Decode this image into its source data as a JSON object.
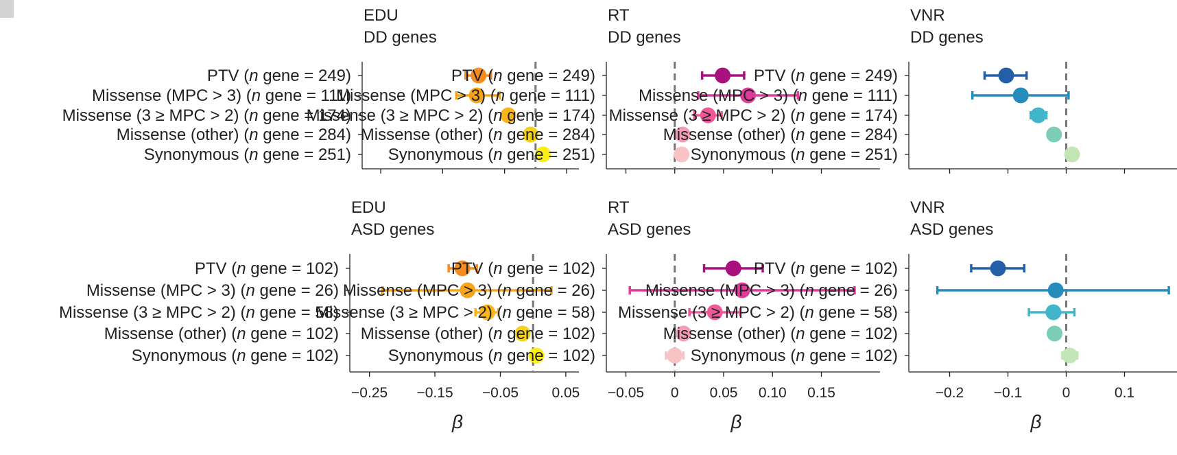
{
  "chart_data": [
    {
      "type": "forest",
      "title_line1": "EDU",
      "title_line2": "DD genes",
      "xlim": [
        -0.28,
        0.07
      ],
      "show_ticklabels": false,
      "xticks": [
        -0.25,
        -0.15,
        -0.05,
        0.05
      ],
      "ref_line": 0,
      "categories": [
        {
          "pre": "PTV (",
          "n": "n",
          "post": " gene = 249)"
        },
        {
          "pre": "Missense (MPC > 3) (",
          "n": "n",
          "post": " gene = 111)"
        },
        {
          "pre": "Missense (3 ≥ MPC > 2) (",
          "n": "n",
          "post": " gene = 174)"
        },
        {
          "pre": "Missense (other) (",
          "n": "n",
          "post": " gene = 284)"
        },
        {
          "pre": "Synonymous (",
          "n": "n",
          "post": " gene = 251)"
        }
      ],
      "beta": [
        -0.092,
        -0.095,
        -0.044,
        -0.008,
        0.012
      ],
      "ci_low": [
        -0.113,
        -0.128,
        -0.053,
        -0.008,
        0.012
      ],
      "ci_high": [
        -0.072,
        -0.058,
        -0.035,
        -0.008,
        0.012
      ],
      "colors": [
        "#f68b1f",
        "#f7a41d",
        "#f9b51a",
        "#f3d11c",
        "#fbee17"
      ]
    },
    {
      "type": "forest",
      "title_line1": "RT",
      "title_line2": "DD genes",
      "xlim": [
        -0.07,
        0.21
      ],
      "show_ticklabels": false,
      "xticks": [
        -0.05,
        0,
        0.05,
        0.1,
        0.15
      ],
      "ref_line": 0,
      "categories": [
        {
          "pre": "PTV (",
          "n": "n",
          "post": " gene = 249)"
        },
        {
          "pre": "Missense (MPC > 3) (",
          "n": "n",
          "post": " gene = 111)"
        },
        {
          "pre": "Missense (3 ≥ MPC > 2) (",
          "n": "n",
          "post": " gene = 174)"
        },
        {
          "pre": "Missense (other) (",
          "n": "n",
          "post": " gene = 284)"
        },
        {
          "pre": "Synonymous (",
          "n": "n",
          "post": " gene = 251)"
        }
      ],
      "beta": [
        0.049,
        0.075,
        0.034,
        0.008,
        0.007
      ],
      "ci_low": [
        0.028,
        0.024,
        0.02,
        0.008,
        0.007
      ],
      "ci_high": [
        0.071,
        0.126,
        0.048,
        0.008,
        0.007
      ],
      "colors": [
        "#a8117e",
        "#e03b9c",
        "#ee5a99",
        "#f49cb5",
        "#f9c3c5"
      ]
    },
    {
      "type": "forest",
      "title_line1": "VNR",
      "title_line2": "DD genes",
      "xlim": [
        -0.27,
        0.19
      ],
      "show_ticklabels": false,
      "xticks": [
        -0.2,
        -0.1,
        0,
        0.1
      ],
      "ref_line": 0,
      "categories": [
        {
          "pre": "PTV (",
          "n": "n",
          "post": " gene = 249)"
        },
        {
          "pre": "Missense (MPC > 3) (",
          "n": "n",
          "post": " gene = 111)"
        },
        {
          "pre": "Missense (3 ≥ MPC > 2) (",
          "n": "n",
          "post": " gene = 174)"
        },
        {
          "pre": "Missense (other) (",
          "n": "n",
          "post": " gene = 284)"
        },
        {
          "pre": "Synonymous (",
          "n": "n",
          "post": " gene = 251)"
        }
      ],
      "beta": [
        -0.103,
        -0.078,
        -0.048,
        -0.021,
        0.01
      ],
      "ci_low": [
        -0.14,
        -0.161,
        -0.061,
        -0.021,
        0.01
      ],
      "ci_high": [
        -0.068,
        0.004,
        -0.034,
        -0.021,
        0.01
      ],
      "colors": [
        "#2360a8",
        "#268cbc",
        "#41b5c9",
        "#7ccdb5",
        "#c3e6b7"
      ]
    },
    {
      "type": "forest",
      "title_line1": "EDU",
      "title_line2": "ASD genes",
      "xlim": [
        -0.28,
        0.07
      ],
      "show_ticklabels": true,
      "xticks": [
        -0.25,
        -0.15,
        -0.05,
        0.05
      ],
      "xtick_labels": [
        "−0.25",
        "−0.15",
        "−0.05",
        "0.05"
      ],
      "xlabel": "β",
      "ref_line": 0,
      "categories": [
        {
          "pre": "PTV (",
          "n": "n",
          "post": " gene = 102)"
        },
        {
          "pre": "Missense (MPC > 3) (",
          "n": "n",
          "post": " gene = 26)"
        },
        {
          "pre": "Missense (3 ≥ MPC > 2) (",
          "n": "n",
          "post": " gene = 58)"
        },
        {
          "pre": "Missense (other) (",
          "n": "n",
          "post": " gene = 102)"
        },
        {
          "pre": "Synonymous (",
          "n": "n",
          "post": " gene = 102)"
        }
      ],
      "beta": [
        -0.108,
        -0.1,
        -0.07,
        -0.016,
        0.005
      ],
      "ci_low": [
        -0.129,
        -0.23,
        -0.088,
        -0.016,
        0.005
      ],
      "ci_high": [
        -0.086,
        0.028,
        -0.053,
        -0.016,
        0.005
      ],
      "colors": [
        "#f68b1f",
        "#f7a41d",
        "#f9b51a",
        "#f3d11c",
        "#fbee17"
      ]
    },
    {
      "type": "forest",
      "title_line1": "RT",
      "title_line2": "ASD genes",
      "xlim": [
        -0.07,
        0.21
      ],
      "show_ticklabels": true,
      "xticks": [
        -0.05,
        0,
        0.05,
        0.1,
        0.15
      ],
      "xtick_labels": [
        "−0.05",
        "0",
        "0.05",
        "0.10",
        "0.15"
      ],
      "xlabel": "β",
      "ref_line": 0,
      "categories": [
        {
          "pre": "PTV (",
          "n": "n",
          "post": " gene = 102)"
        },
        {
          "pre": "Missense (MPC > 3) (",
          "n": "n",
          "post": " gene = 26)"
        },
        {
          "pre": "Missense (3 ≥ MPC > 2) (",
          "n": "n",
          "post": " gene = 58)"
        },
        {
          "pre": "Missense (other) (",
          "n": "n",
          "post": " gene = 102)"
        },
        {
          "pre": "Synonymous (",
          "n": "n",
          "post": " gene = 102)"
        }
      ],
      "beta": [
        0.06,
        0.069,
        0.041,
        0.009,
        0.0
      ],
      "ci_low": [
        0.03,
        -0.046,
        0.015,
        0.009,
        -0.009
      ],
      "ci_high": [
        0.09,
        0.184,
        0.067,
        0.009,
        0.009
      ],
      "colors": [
        "#a8117e",
        "#e03b9c",
        "#ee5a99",
        "#f49cb5",
        "#f9c3c5"
      ]
    },
    {
      "type": "forest",
      "title_line1": "VNR",
      "title_line2": "ASD genes",
      "xlim": [
        -0.27,
        0.19
      ],
      "show_ticklabels": true,
      "xticks": [
        -0.2,
        -0.1,
        0,
        0.1
      ],
      "xtick_labels": [
        "−0.2",
        "−0.1",
        "0",
        "0.1"
      ],
      "xlabel": "β",
      "ref_line": 0,
      "categories": [
        {
          "pre": "PTV (",
          "n": "n",
          "post": " gene = 102)"
        },
        {
          "pre": "Missense (MPC > 3) (",
          "n": "n",
          "post": " gene = 26)"
        },
        {
          "pre": "Missense (3 ≥ MPC > 2) (",
          "n": "n",
          "post": " gene = 58)"
        },
        {
          "pre": "Missense (other) (",
          "n": "n",
          "post": " gene = 102)"
        },
        {
          "pre": "Synonymous (",
          "n": "n",
          "post": " gene = 102)"
        }
      ],
      "beta": [
        -0.117,
        -0.018,
        -0.022,
        -0.02,
        0.006
      ],
      "ci_low": [
        -0.163,
        -0.221,
        -0.064,
        -0.02,
        -0.007
      ],
      "ci_high": [
        -0.072,
        0.176,
        0.014,
        -0.02,
        0.019
      ],
      "colors": [
        "#2360a8",
        "#268cbc",
        "#41b5c9",
        "#7ccdb5",
        "#c3e6b7"
      ]
    }
  ]
}
